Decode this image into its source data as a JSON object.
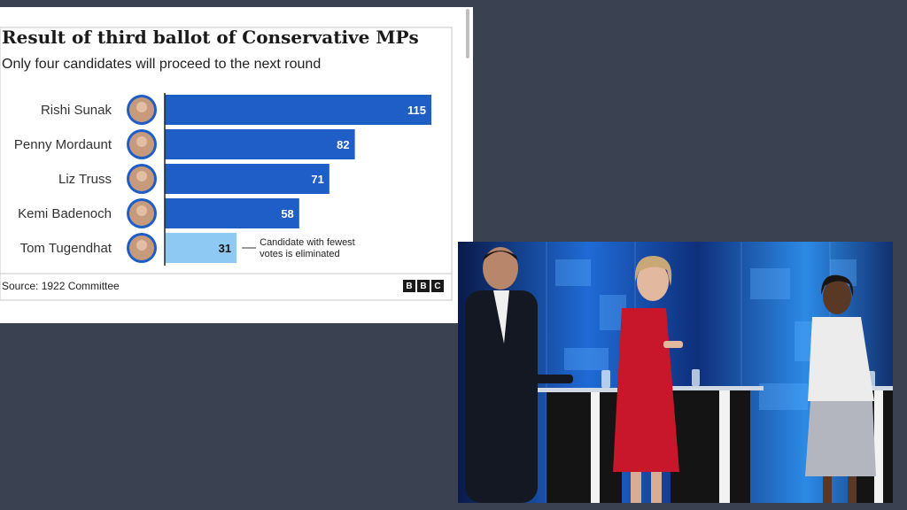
{
  "chart_data": {
    "type": "bar",
    "orientation": "horizontal",
    "title": "Result of third ballot of Conservative MPs",
    "subtitle": "Only four candidates will proceed to the next round",
    "categories": [
      "Rishi Sunak",
      "Penny Mordaunt",
      "Liz Truss",
      "Kemi Badenoch",
      "Tom Tugendhat"
    ],
    "values": [
      115,
      82,
      71,
      58,
      31
    ],
    "eliminated_index": 4,
    "annotation": "Candidate with fewest votes is eliminated",
    "source": "Source: 1922 Committee",
    "colors": {
      "bar": "#1f5dc7",
      "eliminated": "#8ec9f4",
      "grid": "#c8c8c8"
    },
    "xlim": [
      0,
      115
    ],
    "grid": true
  },
  "logo": {
    "letters": [
      "B",
      "B",
      "C"
    ]
  }
}
